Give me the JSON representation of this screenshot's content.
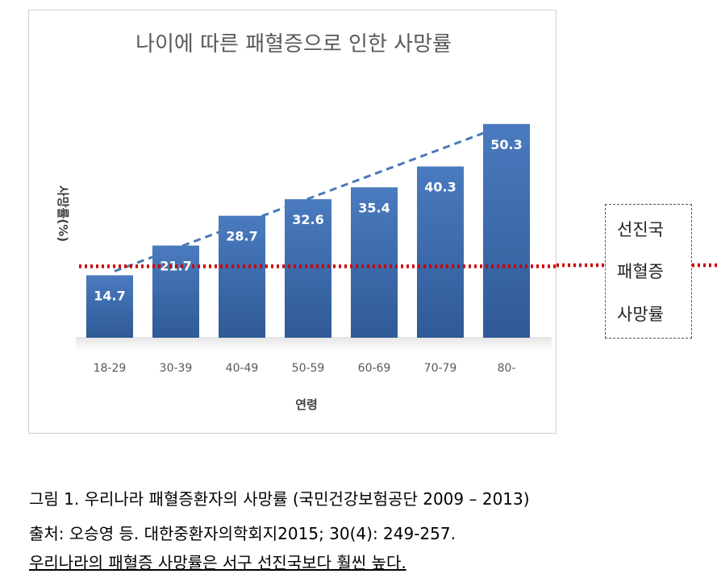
{
  "chart_data": {
    "type": "bar",
    "title": "나이에 따른 패혈증으로 인한 사망률",
    "xlabel": "연령",
    "ylabel": "사망률(%)",
    "categories": [
      "18-29",
      "30-39",
      "40-49",
      "50-59",
      "60-69",
      "70-79",
      "80-"
    ],
    "values": [
      14.7,
      21.7,
      28.7,
      32.6,
      35.4,
      40.3,
      50.3
    ],
    "ylim": [
      0,
      55
    ],
    "grid": false,
    "bar_color": "#3f6fad",
    "trend_line": {
      "style": "dashed",
      "color": "#4a78b8"
    },
    "reference_line": {
      "style": "dotted",
      "color": "#cc0000",
      "value": 16.8
    }
  },
  "legend_box": {
    "lines": [
      "선진국",
      "패혈증",
      "사망률"
    ]
  },
  "captions": {
    "line1": "그림 1. 우리나라 패혈증환자의 사망률 (국민건강보험공단 2009 – 2013)",
    "line2": "출처: 오승영 등. 대한중환자의학회지2015; 30(4): 249-257.",
    "line3": "우리나라의 패혈증 사망률은 서구 선진국보다 훨씬 높다."
  }
}
